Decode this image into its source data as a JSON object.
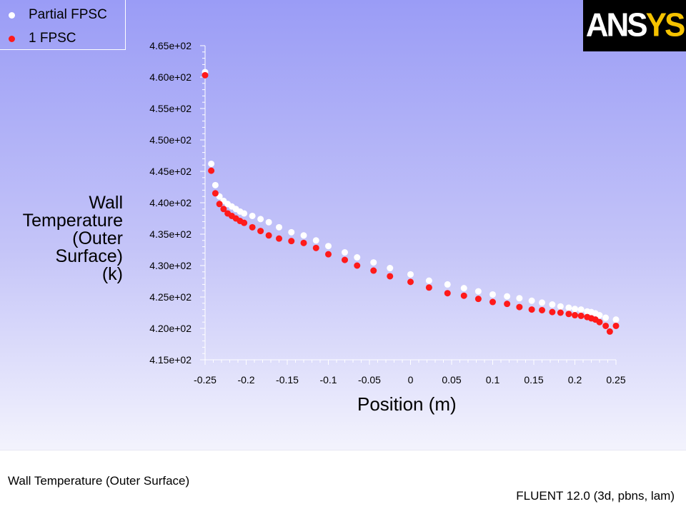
{
  "logo": {
    "text_main": "ANS",
    "text_accent": "YS",
    "accent_color": "#f5c200"
  },
  "footer": {
    "title": "Wall Temperature (Outer Surface)",
    "version": "FLUENT 12.0 (3d, pbns, lam)"
  },
  "chart_data": {
    "type": "scatter",
    "title": "",
    "xlabel": "Position (m)",
    "ylabel_lines": [
      "Wall",
      "Temperature",
      "(Outer",
      "Surface)",
      "(k)"
    ],
    "xlim": [
      -0.25,
      0.25
    ],
    "ylim": [
      415,
      465
    ],
    "xticks": [
      -0.25,
      -0.2,
      -0.15,
      -0.1,
      -0.05,
      0,
      0.05,
      0.1,
      0.15,
      0.2,
      0.25
    ],
    "xtick_labels": [
      "-0.25",
      "-0.2",
      "-0.15",
      "-0.1",
      "-0.05",
      "0",
      "0.05",
      "0.1",
      "0.15",
      "0.2",
      "0.25"
    ],
    "yticks": [
      415,
      420,
      425,
      430,
      435,
      440,
      445,
      450,
      455,
      460,
      465
    ],
    "ytick_labels": [
      "4.15e+02",
      "4.20e+02",
      "4.25e+02",
      "4.30e+02",
      "4.35e+02",
      "4.40e+02",
      "4.45e+02",
      "4.50e+02",
      "4.55e+02",
      "4.60e+02",
      "4.65e+02"
    ],
    "grid": false,
    "legend_position": "top-left",
    "series": [
      {
        "name": "Partial FPSC",
        "color": "#ffffff",
        "x": [
          -0.25,
          -0.2425,
          -0.2375,
          -0.2325,
          -0.2275,
          -0.2225,
          -0.2175,
          -0.2125,
          -0.2075,
          -0.2025,
          -0.1925,
          -0.1825,
          -0.1725,
          -0.16,
          -0.145,
          -0.13,
          -0.115,
          -0.1,
          -0.08,
          -0.065,
          -0.045,
          -0.025,
          0,
          0.0225,
          0.045,
          0.065,
          0.0825,
          0.1,
          0.1175,
          0.1325,
          0.1475,
          0.16,
          0.1725,
          0.1825,
          0.1925,
          0.2,
          0.2075,
          0.215,
          0.22,
          0.225,
          0.23,
          0.2375,
          0.25
        ],
        "y": [
          460.8,
          446.2,
          442.8,
          441.0,
          440.3,
          439.8,
          439.4,
          439.0,
          438.6,
          438.3,
          437.9,
          437.4,
          436.9,
          436.1,
          435.3,
          434.8,
          434.0,
          433.1,
          432.1,
          431.3,
          430.5,
          429.6,
          428.6,
          427.6,
          427.0,
          426.4,
          425.9,
          425.4,
          425.1,
          424.8,
          424.4,
          424.1,
          423.8,
          423.5,
          423.3,
          423.1,
          423.0,
          422.7,
          422.6,
          422.4,
          422.1,
          421.7,
          421.4
        ]
      },
      {
        "name": "1 FPSC",
        "color": "#ff1a1a",
        "x": [
          -0.25,
          -0.2425,
          -0.2375,
          -0.2325,
          -0.2275,
          -0.2225,
          -0.2175,
          -0.2125,
          -0.2075,
          -0.2025,
          -0.1925,
          -0.1825,
          -0.1725,
          -0.16,
          -0.145,
          -0.13,
          -0.115,
          -0.1,
          -0.08,
          -0.065,
          -0.045,
          -0.025,
          0,
          0.0225,
          0.045,
          0.065,
          0.0825,
          0.1,
          0.1175,
          0.1325,
          0.1475,
          0.16,
          0.1725,
          0.1825,
          0.1925,
          0.2,
          0.2075,
          0.215,
          0.22,
          0.225,
          0.23,
          0.2375,
          0.2425,
          0.25
        ],
        "y": [
          460.3,
          445.1,
          441.5,
          439.8,
          439.0,
          438.3,
          437.9,
          437.5,
          437.1,
          436.8,
          436.1,
          435.5,
          434.8,
          434.3,
          433.9,
          433.6,
          432.8,
          431.8,
          430.9,
          430.0,
          429.2,
          428.3,
          427.4,
          426.5,
          425.6,
          425.2,
          424.7,
          424.2,
          423.9,
          423.4,
          423.0,
          422.9,
          422.6,
          422.5,
          422.3,
          422.1,
          422.0,
          421.8,
          421.6,
          421.4,
          421.0,
          420.4,
          419.5,
          420.4
        ]
      }
    ]
  }
}
